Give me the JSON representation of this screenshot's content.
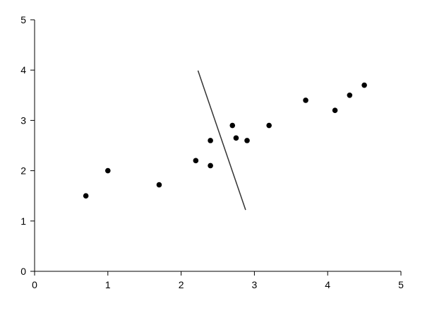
{
  "chart_data": {
    "type": "scatter",
    "title": "",
    "xlabel": "",
    "ylabel": "",
    "xlim": [
      0,
      5
    ],
    "ylim": [
      0,
      5
    ],
    "x_ticks": [
      "0",
      "1",
      "2",
      "3",
      "4",
      "5"
    ],
    "y_ticks": [
      "0",
      "1",
      "2",
      "3",
      "4",
      "5"
    ],
    "grid": false,
    "legend": "none",
    "marker_color": "#000000",
    "points": [
      {
        "x": 0.7,
        "y": 1.5
      },
      {
        "x": 1.0,
        "y": 2.0
      },
      {
        "x": 1.7,
        "y": 1.72
      },
      {
        "x": 2.2,
        "y": 2.2
      },
      {
        "x": 2.4,
        "y": 2.6
      },
      {
        "x": 2.4,
        "y": 2.1
      },
      {
        "x": 2.7,
        "y": 2.9
      },
      {
        "x": 2.75,
        "y": 2.65
      },
      {
        "x": 2.9,
        "y": 2.6
      },
      {
        "x": 3.2,
        "y": 2.9
      },
      {
        "x": 3.7,
        "y": 3.4
      },
      {
        "x": 4.1,
        "y": 3.2
      },
      {
        "x": 4.3,
        "y": 3.5
      },
      {
        "x": 4.5,
        "y": 3.7
      }
    ],
    "line_segment": [
      {
        "x": 2.23,
        "y": 3.99
      },
      {
        "x": 2.88,
        "y": 1.22
      }
    ]
  }
}
